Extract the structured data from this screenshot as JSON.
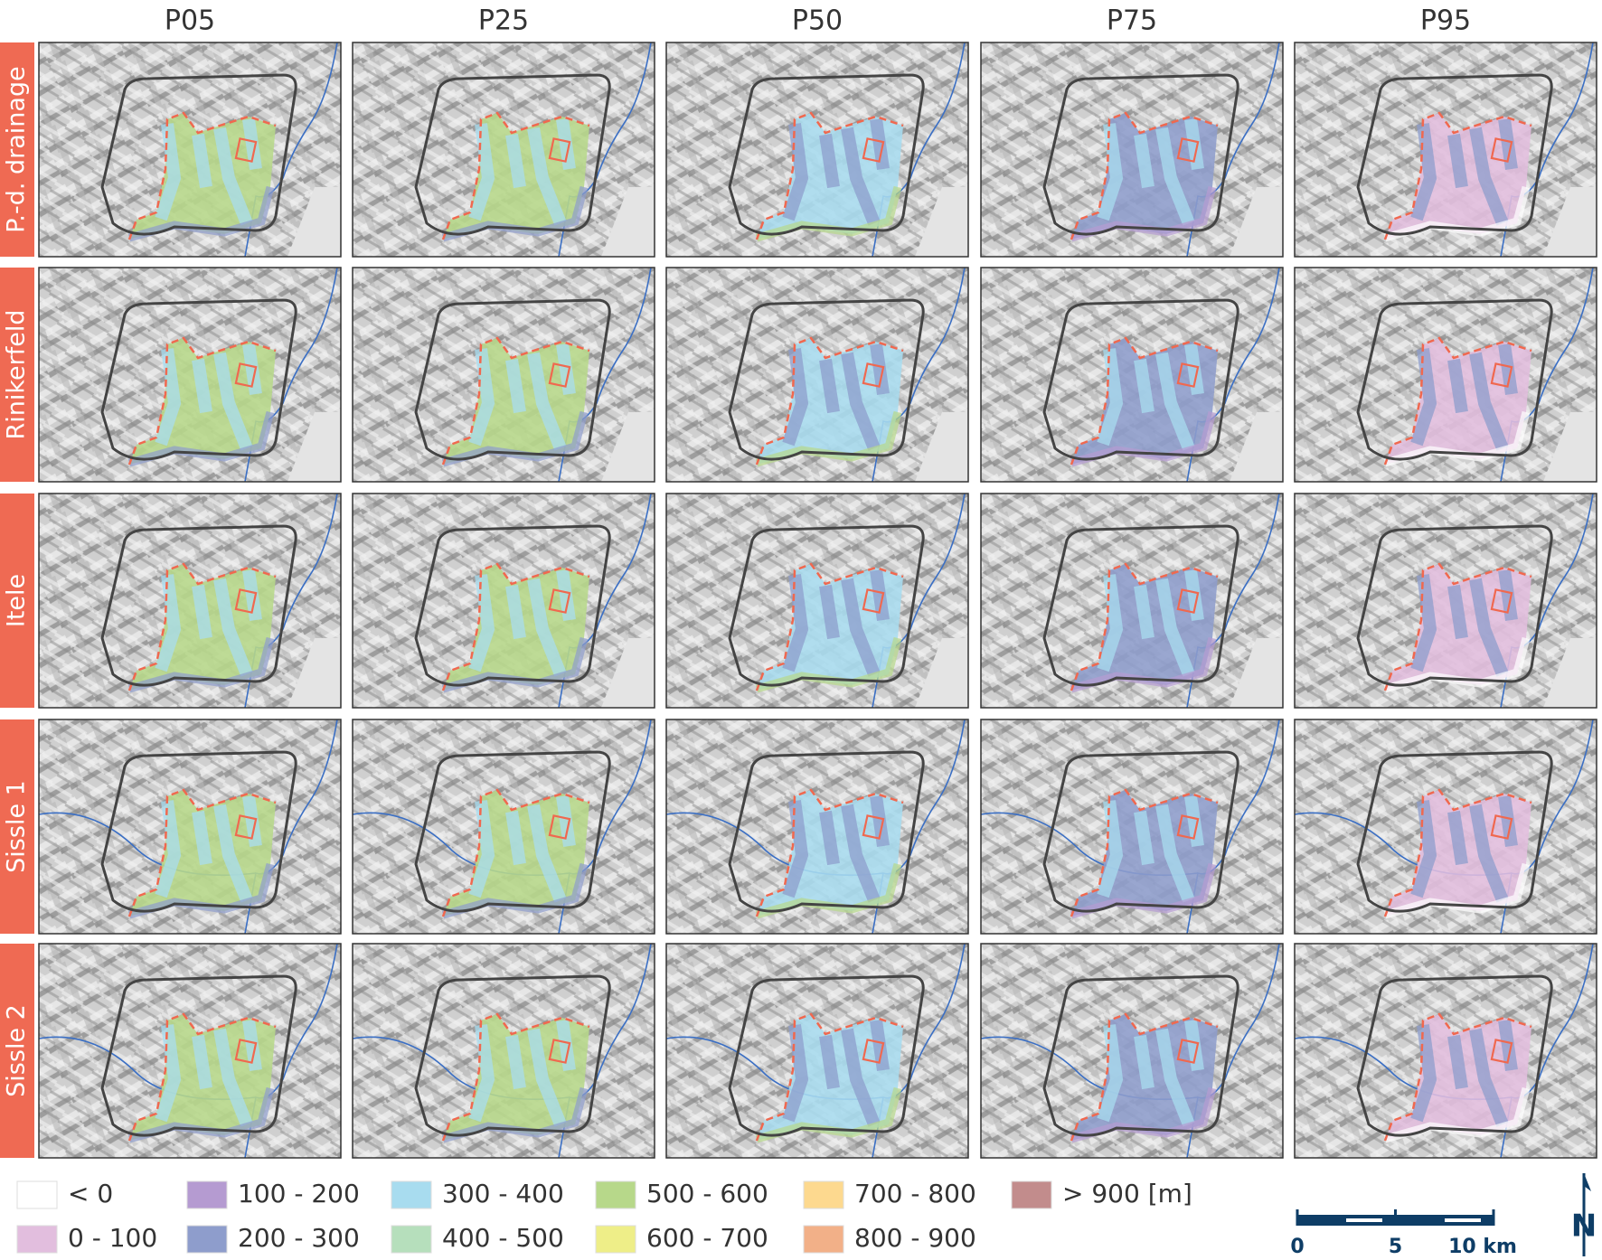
{
  "columns": [
    "P05",
    "P25",
    "P50",
    "P75",
    "P95"
  ],
  "rows": [
    "P.-d. drainage",
    "Rinikerfeld",
    "Itele",
    "Sissle 1",
    "Sissle 2"
  ],
  "legend": [
    {
      "label": "< 0",
      "color": "#ffffff"
    },
    {
      "label": "0 - 100",
      "color": "#e2bede"
    },
    {
      "label": "100 - 200",
      "color": "#b59bd1"
    },
    {
      "label": "200 - 300",
      "color": "#8e9dcc"
    },
    {
      "label": "300 - 400",
      "color": "#a8dcef"
    },
    {
      "label": "400 - 500",
      "color": "#b6dfbc"
    },
    {
      "label": "500 - 600",
      "color": "#b7d88a"
    },
    {
      "label": "600 - 700",
      "color": "#eeee88"
    },
    {
      "label": "700 - 800",
      "color": "#fdd98f"
    },
    {
      "label": "800 - 900",
      "color": "#f2b088"
    },
    {
      "label": "> 900 [m]",
      "color": "#c28c8c"
    }
  ],
  "scale_bar": {
    "labels": [
      "0",
      "5",
      "10 km"
    ]
  },
  "north_arrow": "N"
}
